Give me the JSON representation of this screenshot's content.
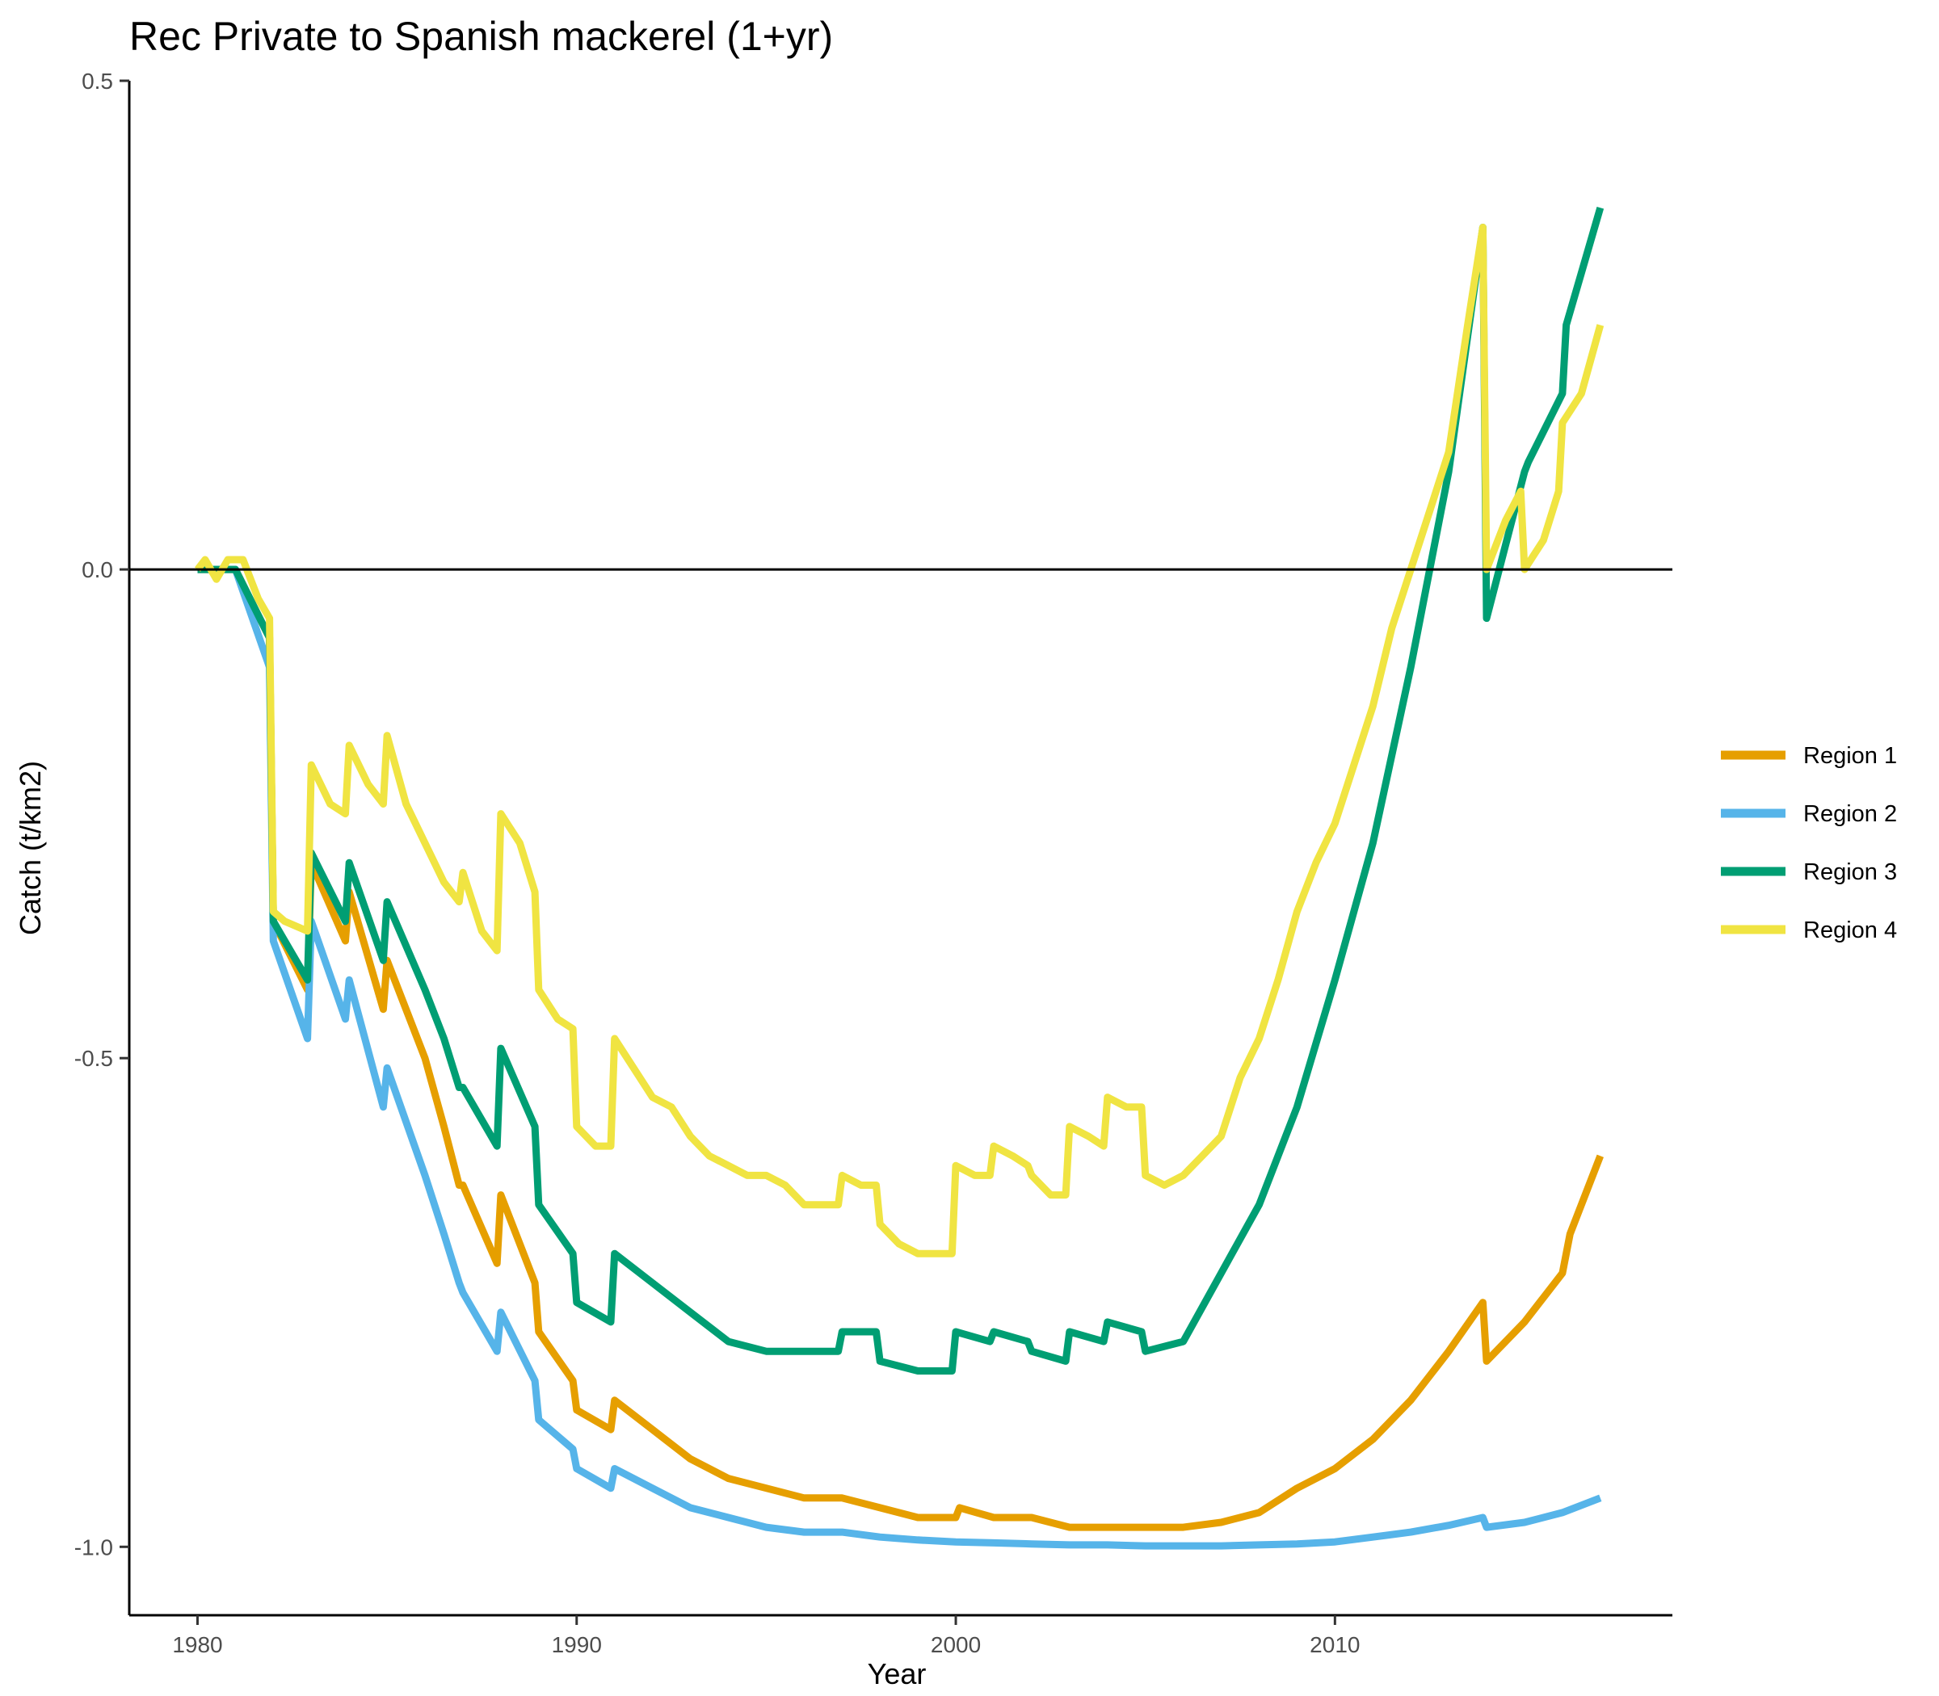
{
  "chart_data": {
    "type": "line",
    "title": "Rec Private to Spanish mackerel (1+yr)",
    "xlabel": "Year",
    "ylabel": "Catch (t/km2)",
    "xlim": [
      1978.2,
      2018.9
    ],
    "ylim": [
      -1.07,
      0.5
    ],
    "x_ticks": [
      1980,
      1990,
      2000,
      2010
    ],
    "x_tick_labels": [
      "1980",
      "1990",
      "2000",
      "2010"
    ],
    "y_ticks": [
      0.5,
      0.0,
      -0.5,
      -1.0
    ],
    "y_tick_labels": [
      "0.5",
      "0.0",
      "-0.5",
      "-1.0"
    ],
    "hline": 0,
    "grid": false,
    "legend": {
      "position": "right"
    },
    "series": [
      {
        "name": "Region 1",
        "color": "#E69F00",
        "x": [
          1980,
          1981,
          1981.9,
          1982.0,
          1982.9,
          1983.0,
          1983.9,
          1984.0,
          1984.9,
          1985.0,
          1986.0,
          1986.5,
          1986.9,
          1987.0,
          1987.9,
          1988.0,
          1988.9,
          1989.0,
          1989.9,
          1990.0,
          1990.9,
          1991.0,
          1992,
          1993,
          1994,
          1995,
          1996,
          1997,
          1998,
          1999,
          2000,
          2000.1,
          2001,
          2002,
          2003,
          2004,
          2005,
          2006,
          2007,
          2008,
          2009,
          2010,
          2011,
          2012,
          2013,
          2013.9,
          2014.0,
          2015.0,
          2015.2,
          2016.0,
          2016.2,
          2017
        ],
        "y": [
          0.0,
          0.0,
          -0.07,
          -0.36,
          -0.43,
          -0.3,
          -0.38,
          -0.33,
          -0.45,
          -0.4,
          -0.5,
          -0.57,
          -0.63,
          -0.63,
          -0.71,
          -0.64,
          -0.73,
          -0.78,
          -0.83,
          -0.86,
          -0.88,
          -0.85,
          -0.88,
          -0.91,
          -0.93,
          -0.94,
          -0.95,
          -0.95,
          -0.96,
          -0.97,
          -0.97,
          -0.96,
          -0.97,
          -0.97,
          -0.98,
          -0.98,
          -0.98,
          -0.98,
          -0.975,
          -0.965,
          -0.94,
          -0.92,
          -0.89,
          -0.85,
          -0.8,
          -0.75,
          -0.81,
          -0.77,
          -0.76,
          -0.72,
          -0.68,
          -0.6
        ]
      },
      {
        "name": "Region 2",
        "color": "#56B4E9",
        "x": [
          1980,
          1981,
          1981.9,
          1982.0,
          1982.9,
          1983.0,
          1983.9,
          1984.0,
          1984.9,
          1985.0,
          1986.0,
          1986.5,
          1986.9,
          1987.0,
          1987.9,
          1988.0,
          1988.9,
          1989.0,
          1989.9,
          1990.0,
          1990.9,
          1991.0,
          1992,
          1993,
          1994,
          1995,
          1996,
          1997,
          1998,
          1999,
          2000,
          2001,
          2002,
          2003,
          2004,
          2005,
          2006,
          2007,
          2008,
          2009,
          2010,
          2011,
          2012,
          2013,
          2013.9,
          2014.0,
          2015.0,
          2016.0,
          2017
        ],
        "y": [
          0.0,
          0.0,
          -0.1,
          -0.38,
          -0.48,
          -0.36,
          -0.46,
          -0.42,
          -0.55,
          -0.51,
          -0.62,
          -0.68,
          -0.73,
          -0.74,
          -0.8,
          -0.76,
          -0.83,
          -0.87,
          -0.9,
          -0.92,
          -0.94,
          -0.92,
          -0.94,
          -0.96,
          -0.97,
          -0.98,
          -0.985,
          -0.985,
          -0.99,
          -0.993,
          -0.995,
          -0.996,
          -0.997,
          -0.998,
          -0.998,
          -0.999,
          -0.999,
          -0.999,
          -0.998,
          -0.997,
          -0.995,
          -0.99,
          -0.985,
          -0.978,
          -0.97,
          -0.98,
          -0.975,
          -0.965,
          -0.95
        ]
      },
      {
        "name": "Region 3",
        "color": "#009E73",
        "x": [
          1980,
          1981,
          1981.9,
          1982.0,
          1982.9,
          1983.0,
          1983.9,
          1984.0,
          1984.9,
          1985.0,
          1986.0,
          1986.5,
          1986.9,
          1987.0,
          1987.9,
          1988.0,
          1988.9,
          1989.0,
          1989.9,
          1990.0,
          1990.9,
          1991.0,
          1992,
          1993,
          1994,
          1995,
          1996,
          1996.9,
          1997.0,
          1997.9,
          1998.0,
          1999,
          1999.9,
          2000.0,
          2000.9,
          2001.0,
          2001.9,
          2002.0,
          2002.9,
          2003.0,
          2003.9,
          2004.0,
          2004.9,
          2005.0,
          2006,
          2007,
          2008,
          2009,
          2010,
          2011,
          2012,
          2013,
          2013.9,
          2014.0,
          2015.0,
          2015.1,
          2016.0,
          2016.1,
          2017
        ],
        "y": [
          0.0,
          0.0,
          -0.07,
          -0.36,
          -0.42,
          -0.29,
          -0.36,
          -0.3,
          -0.4,
          -0.34,
          -0.43,
          -0.48,
          -0.53,
          -0.53,
          -0.59,
          -0.49,
          -0.57,
          -0.65,
          -0.7,
          -0.75,
          -0.77,
          -0.7,
          -0.73,
          -0.76,
          -0.79,
          -0.8,
          -0.8,
          -0.8,
          -0.78,
          -0.78,
          -0.81,
          -0.82,
          -0.82,
          -0.78,
          -0.79,
          -0.78,
          -0.79,
          -0.8,
          -0.81,
          -0.78,
          -0.79,
          -0.77,
          -0.78,
          -0.8,
          -0.79,
          -0.72,
          -0.65,
          -0.55,
          -0.42,
          -0.28,
          -0.1,
          0.1,
          0.35,
          -0.05,
          0.1,
          0.11,
          0.18,
          0.25,
          0.37
        ]
      },
      {
        "name": "Region 4",
        "color": "#F0E442",
        "x": [
          1980,
          1980.2,
          1980.5,
          1980.8,
          1981.2,
          1981.6,
          1981.9,
          1982.0,
          1982.3,
          1982.9,
          1983.0,
          1983.5,
          1983.9,
          1984.0,
          1984.5,
          1984.9,
          1985.0,
          1985.5,
          1986.0,
          1986.5,
          1986.9,
          1987.0,
          1987.5,
          1987.9,
          1988.0,
          1988.5,
          1988.9,
          1989.0,
          1989.5,
          1989.9,
          1990.0,
          1990.5,
          1990.9,
          1991.0,
          1991.5,
          1992,
          1992.5,
          1993,
          1993.5,
          1994,
          1994.5,
          1995,
          1995.5,
          1996,
          1996.5,
          1996.9,
          1997.0,
          1997.5,
          1997.9,
          1998.0,
          1998.5,
          1999,
          1999.5,
          1999.9,
          2000.0,
          2000.5,
          2000.9,
          2001.0,
          2001.5,
          2001.9,
          2002.0,
          2002.5,
          2002.9,
          2003.0,
          2003.5,
          2003.9,
          2004.0,
          2004.5,
          2004.9,
          2005.0,
          2005.5,
          2006,
          2006.5,
          2007,
          2007.5,
          2008,
          2008.5,
          2009,
          2009.5,
          2010,
          2010.5,
          2011,
          2011.5,
          2012,
          2012.5,
          2013,
          2013.5,
          2013.9,
          2014.0,
          2014.5,
          2014.9,
          2015.0,
          2015.5,
          2015.9,
          2016.0,
          2016.5,
          2017
        ],
        "y": [
          0.0,
          0.01,
          -0.01,
          0.01,
          0.01,
          -0.03,
          -0.05,
          -0.35,
          -0.36,
          -0.37,
          -0.2,
          -0.24,
          -0.25,
          -0.18,
          -0.22,
          -0.24,
          -0.17,
          -0.24,
          -0.28,
          -0.32,
          -0.34,
          -0.31,
          -0.37,
          -0.39,
          -0.25,
          -0.28,
          -0.33,
          -0.43,
          -0.46,
          -0.47,
          -0.57,
          -0.59,
          -0.59,
          -0.48,
          -0.51,
          -0.54,
          -0.55,
          -0.58,
          -0.6,
          -0.61,
          -0.62,
          -0.62,
          -0.63,
          -0.65,
          -0.65,
          -0.65,
          -0.62,
          -0.63,
          -0.63,
          -0.67,
          -0.69,
          -0.7,
          -0.7,
          -0.7,
          -0.61,
          -0.62,
          -0.62,
          -0.59,
          -0.6,
          -0.61,
          -0.62,
          -0.64,
          -0.64,
          -0.57,
          -0.58,
          -0.59,
          -0.54,
          -0.55,
          -0.55,
          -0.62,
          -0.63,
          -0.62,
          -0.6,
          -0.58,
          -0.52,
          -0.48,
          -0.42,
          -0.35,
          -0.3,
          -0.26,
          -0.2,
          -0.14,
          -0.06,
          0.0,
          0.06,
          0.12,
          0.25,
          0.35,
          0.0,
          0.05,
          0.08,
          0.0,
          0.03,
          0.08,
          0.15,
          0.18,
          0.25
        ]
      }
    ]
  }
}
